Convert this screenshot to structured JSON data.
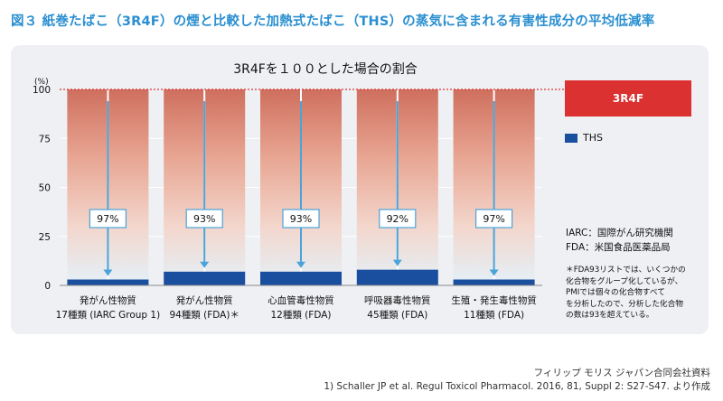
{
  "figure": {
    "title": "図３ 紙巻たばこ（3R4F）の煙と比較した加熱式たばこ（THS）の蒸気に含まれる有害性成分の平均低減率"
  },
  "chart_data": {
    "type": "bar",
    "title": "3R4Fを１００とした場合の割合",
    "ylabel": "(%)",
    "ylim": [
      0,
      100
    ],
    "yticks": [
      "100",
      "75",
      "50",
      "25",
      "0"
    ],
    "categories": [
      {
        "line1": "発がん性物質",
        "line2": "17種類 (IARC Group 1)"
      },
      {
        "line1": "発がん性物質",
        "line2": "94種類 (FDA)＊"
      },
      {
        "line1": "心血管毒性物質",
        "line2": "12種類 (FDA)"
      },
      {
        "line1": "呼吸器毒性物質",
        "line2": "45種類 (FDA)"
      },
      {
        "line1": "生殖・発生毒性物質",
        "line2": "11種類 (FDA)"
      }
    ],
    "series": [
      {
        "name": "3R4F",
        "values": [
          100,
          100,
          100,
          100,
          100
        ],
        "color": "#dc3131"
      },
      {
        "name": "THS",
        "values": [
          3,
          7,
          7,
          8,
          3
        ],
        "color": "#1a4f9f"
      }
    ],
    "reduction_labels": [
      "97%",
      "93%",
      "93%",
      "92%",
      "97%"
    ]
  },
  "abbreviations": [
    "IARC：国際がん研究機関",
    "FDA：米国食品医薬品局"
  ],
  "note": [
    "＊FDA93リストでは、いくつかの",
    "化合物をグループ化しているが、",
    "PMIでは個々の化合物すべて",
    "を分析したので、分析した化合物",
    "の数は93を超えている。"
  ],
  "source": [
    "フィリップ モリス ジャパン合同会社資料",
    "1) Schaller JP et al. Regul Toxicol Pharmacol. 2016, 81, Suppl 2: S27-S47. より作成"
  ]
}
